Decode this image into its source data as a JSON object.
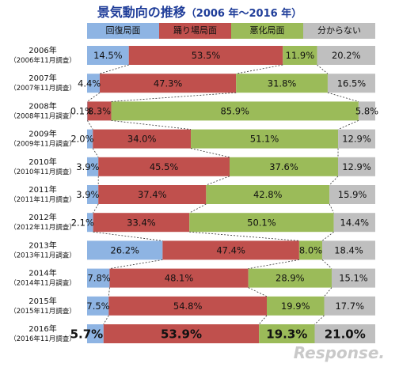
{
  "title": {
    "main": "景気動向の推移",
    "sub": "（2006 年～2016 年）"
  },
  "legend": [
    "回復局面",
    "踊り場局面",
    "悪化局面",
    "分からない"
  ],
  "colors": [
    "#8eb4e3",
    "#c0504d",
    "#9bbb59",
    "#bfbfbf"
  ],
  "watermark": "Response.",
  "chart_data": {
    "type": "bar",
    "stacked": true,
    "orientation": "horizontal",
    "unit": "%",
    "categories": [
      {
        "year": "2006年",
        "survey": "（2006年11月調査）"
      },
      {
        "year": "2007年",
        "survey": "（2007年11月調査）"
      },
      {
        "year": "2008年",
        "survey": "（2008年11月調査）"
      },
      {
        "year": "2009年",
        "survey": "（2009年11月調査）"
      },
      {
        "year": "2010年",
        "survey": "（2010年11月調査）"
      },
      {
        "year": "2011年",
        "survey": "（2011年11月調査）"
      },
      {
        "year": "2012年",
        "survey": "（2012年11月調査）"
      },
      {
        "year": "2013年",
        "survey": "（2013年11月調査）"
      },
      {
        "year": "2014年",
        "survey": "（2014年11月調査）"
      },
      {
        "year": "2015年",
        "survey": "（2015年11月調査）"
      },
      {
        "year": "2016年",
        "survey": "（2016年11月調査）"
      }
    ],
    "series": [
      {
        "name": "回復局面",
        "values": [
          14.5,
          4.4,
          0.1,
          2.0,
          3.9,
          3.9,
          2.1,
          26.2,
          7.8,
          7.5,
          5.7
        ]
      },
      {
        "name": "踊り場局面",
        "values": [
          53.5,
          47.3,
          8.3,
          34.0,
          45.5,
          37.4,
          33.4,
          47.4,
          48.1,
          54.8,
          53.9
        ]
      },
      {
        "name": "悪化局面",
        "values": [
          11.9,
          31.8,
          85.9,
          51.1,
          37.6,
          42.8,
          50.1,
          8.0,
          28.9,
          19.9,
          19.3
        ]
      },
      {
        "name": "分からない",
        "values": [
          20.2,
          16.5,
          5.8,
          12.9,
          12.9,
          15.9,
          14.4,
          18.4,
          15.1,
          17.7,
          21.0
        ]
      }
    ],
    "labels": [
      [
        "14.5%",
        "53.5%",
        "11.9%",
        "20.2%"
      ],
      [
        "4.4%",
        "47.3%",
        "31.8%",
        "16.5%"
      ],
      [
        "0.1%",
        "8.3%",
        "85.9%",
        "5.8%"
      ],
      [
        "2.0%",
        "34.0%",
        "51.1%",
        "12.9%"
      ],
      [
        "3.9%",
        "45.5%",
        "37.6%",
        "12.9%"
      ],
      [
        "3.9%",
        "37.4%",
        "42.8%",
        "15.9%"
      ],
      [
        "2.1%",
        "33.4%",
        "50.1%",
        "14.4%"
      ],
      [
        "26.2%",
        "47.4%",
        "8.0%",
        "18.4%"
      ],
      [
        "7.8%",
        "48.1%",
        "28.9%",
        "15.1%"
      ],
      [
        "7.5%",
        "54.8%",
        "19.9%",
        "17.7%"
      ],
      [
        "5.7%",
        "53.9%",
        "19.3%",
        "21.0%"
      ]
    ],
    "highlight_last": true
  }
}
